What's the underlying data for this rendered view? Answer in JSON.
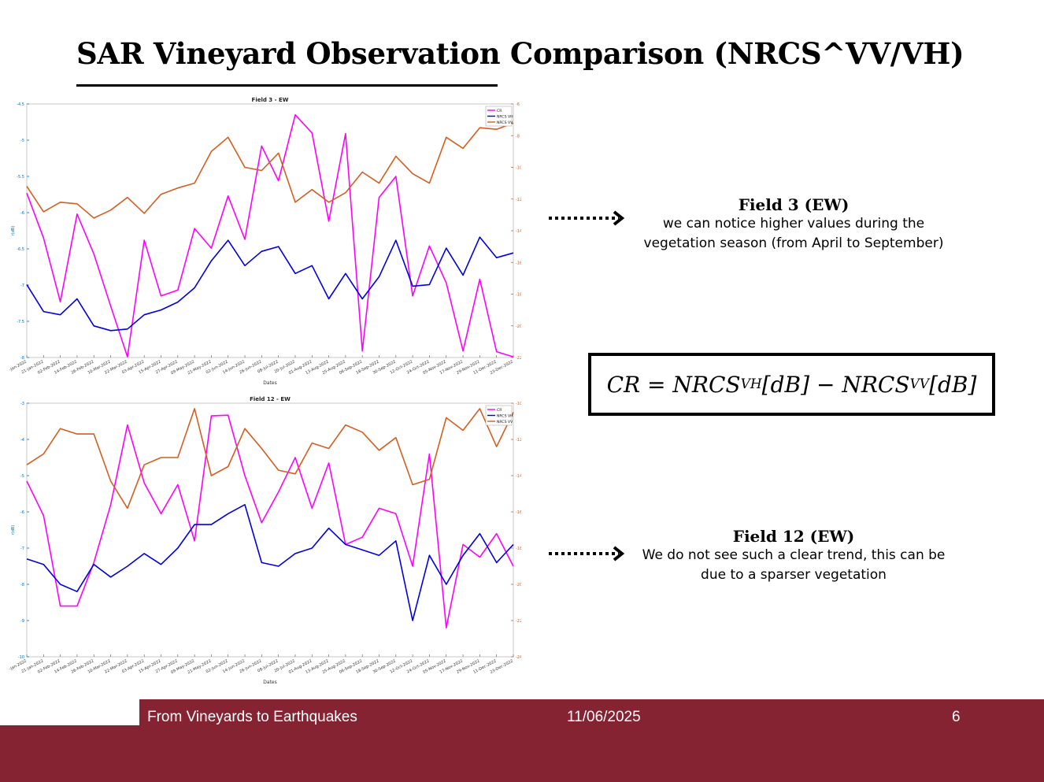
{
  "slide": {
    "title": "SAR Vineyard Observation Comparison (NRCS^VV/VH)",
    "footer_left": "From Vineyards to Earthquakes",
    "footer_date": "11/06/2025",
    "footer_page": "6"
  },
  "notes": [
    {
      "head": "Field 3 (EW)",
      "body1": "we can notice higher values during the",
      "body2": "vegetation season (from April to September)"
    },
    {
      "head": "Field 12 (EW)",
      "body1": "We do not see such a clear trend, this can be",
      "body2": "due to a sparser vegetation"
    }
  ],
  "formula": {
    "lhs": "CR",
    "eq": "=",
    "t1": "NRCS",
    "s1": "VH",
    "u1": "[dB]",
    "minus": "−",
    "t2": "NRCS",
    "s2": "VV",
    "u2": "[dB]"
  },
  "colors": {
    "CR": "#ff00ff",
    "VH": "#0000e0",
    "VV": "#d35f20",
    "footer": "#862333",
    "left_axis": "#0072bd"
  },
  "chart_data": [
    {
      "type": "line",
      "title": "Field 3 - EW",
      "xlabel": "Dates",
      "ylabel_left": "r(dB)",
      "ylabel_right": "n(d)",
      "ylim_left": [
        -8,
        -4.5
      ],
      "ylim_right": [
        -22,
        -6
      ],
      "yticks_left": [
        "-4.5",
        "-5",
        "-5.5",
        "-6",
        "-6.5",
        "-7",
        "-7.5",
        "-8"
      ],
      "yticks_right": [
        "-6",
        "-8",
        "-10",
        "-12",
        "-14",
        "-16",
        "-18",
        "-20",
        "-22"
      ],
      "x": [
        "09-Jan-2022",
        "21-Jan-2022",
        "02-Feb-2022",
        "14-Feb-2022",
        "26-Feb-2022",
        "10-Mar-2022",
        "22-Mar-2022",
        "03-Apr-2022",
        "15-Apr-2022",
        "27-Apr-2022",
        "09-May-2022",
        "21-May-2022",
        "02-Jun-2022",
        "14-Jun-2022",
        "26-Jun-2022",
        "08-Jul-2022",
        "20-Jul-2022",
        "01-Aug-2022",
        "13-Aug-2022",
        "25-Aug-2022",
        "06-Sep-2022",
        "18-Sep-2022",
        "30-Sep-2022",
        "12-Oct-2022",
        "24-Oct-2022",
        "05-Nov-2022",
        "17-Nov-2022",
        "29-Nov-2022",
        "11-Dec-2022",
        "23-Dec-2022"
      ],
      "legend": [
        "CR",
        "NRCS VH",
        "NRCS VV"
      ],
      "series": [
        {
          "name": "CR",
          "axis": "left",
          "values": [
            -5.73,
            -6.35,
            -7.23,
            -6.02,
            -6.57,
            -7.29,
            -7.99,
            -6.38,
            -7.15,
            -7.07,
            -6.22,
            -6.49,
            -5.77,
            -6.37,
            -5.08,
            -5.56,
            -4.65,
            -4.9,
            -6.12,
            -4.91,
            -7.91,
            -5.79,
            -5.5,
            -7.15,
            -6.46,
            -6.97,
            -7.91,
            -6.92,
            -7.92,
            -7.99
          ]
        },
        {
          "name": "NRCS VH",
          "axis": "right",
          "values": [
            -17.4,
            -19.1,
            -19.3,
            -18.3,
            -20.0,
            -20.3,
            -20.2,
            -19.3,
            -19.0,
            -18.5,
            -17.6,
            -15.9,
            -14.6,
            -16.2,
            -15.3,
            -15.0,
            -16.7,
            -16.2,
            -18.3,
            -16.7,
            -18.3,
            -16.9,
            -14.6,
            -17.5,
            -17.4,
            -15.1,
            -16.8,
            -14.4,
            -15.7,
            -15.4
          ]
        },
        {
          "name": "NRCS VV",
          "axis": "right",
          "values": [
            -11.2,
            -12.8,
            -12.2,
            -12.3,
            -13.2,
            -12.7,
            -11.9,
            -12.9,
            -11.7,
            -11.3,
            -11.0,
            -9.0,
            -8.1,
            -10.0,
            -10.2,
            -9.1,
            -12.2,
            -11.4,
            -12.2,
            -11.6,
            -10.3,
            -11.0,
            -9.3,
            -10.4,
            -11.0,
            -8.1,
            -8.8,
            -7.5,
            -7.6,
            -7.2
          ]
        }
      ]
    },
    {
      "type": "line",
      "title": "Field 12 - EW",
      "xlabel": "Dates",
      "ylabel_left": "r(dB)",
      "ylabel_right": "n(d)",
      "ylim_left": [
        -10,
        -3
      ],
      "ylim_right": [
        -24,
        -10
      ],
      "yticks_left": [
        "-3",
        "-4",
        "-5",
        "-6",
        "-7",
        "-8",
        "-9",
        "-10"
      ],
      "yticks_right": [
        "-10",
        "-12",
        "-14",
        "-16",
        "-18",
        "-20",
        "-22",
        "-24"
      ],
      "x": [
        "09-Jan-2022",
        "21-Jan-2022",
        "02-Feb-2022",
        "14-Feb-2022",
        "26-Feb-2022",
        "10-Mar-2022",
        "22-Mar-2022",
        "03-Apr-2022",
        "15-Apr-2022",
        "27-Apr-2022",
        "09-May-2022",
        "21-May-2022",
        "02-Jun-2022",
        "14-Jun-2022",
        "26-Jun-2022",
        "08-Jul-2022",
        "20-Jul-2022",
        "01-Aug-2022",
        "13-Aug-2022",
        "25-Aug-2022",
        "06-Sep-2022",
        "18-Sep-2022",
        "30-Sep-2022",
        "12-Oct-2022",
        "24-Oct-2022",
        "05-Nov-2022",
        "17-Nov-2022",
        "29-Nov-2022",
        "11-Dec-2022",
        "23-Dec-2022"
      ],
      "legend": [
        "CR",
        "NRCS VH",
        "NRCS VV"
      ],
      "series": [
        {
          "name": "CR",
          "axis": "left",
          "values": [
            -5.15,
            -6.1,
            -8.6,
            -8.6,
            -7.4,
            -5.8,
            -3.6,
            -5.2,
            -6.05,
            -5.25,
            -6.8,
            -3.35,
            -3.33,
            -5.0,
            -6.3,
            -5.45,
            -4.5,
            -5.9,
            -4.65,
            -6.9,
            -6.7,
            -5.9,
            -6.05,
            -7.5,
            -4.4,
            -9.2,
            -6.9,
            -7.25,
            -6.6,
            -7.5
          ]
        },
        {
          "name": "NRCS VH",
          "axis": "right",
          "values": [
            -18.6,
            -18.9,
            -20.0,
            -20.4,
            -18.9,
            -19.6,
            -19.0,
            -18.3,
            -18.9,
            -18.0,
            -16.7,
            -16.7,
            -16.1,
            -15.6,
            -18.8,
            -19.0,
            -18.3,
            -18.0,
            -16.9,
            -17.8,
            -18.1,
            -18.4,
            -17.6,
            -22.0,
            -18.4,
            -20.0,
            -18.4,
            -17.2,
            -18.8,
            -17.8
          ]
        },
        {
          "name": "NRCS VV",
          "axis": "right",
          "values": [
            -13.4,
            -12.8,
            -11.4,
            -11.7,
            -11.7,
            -14.3,
            -15.8,
            -13.4,
            -13.0,
            -13.0,
            -10.3,
            -14.0,
            -13.5,
            -11.4,
            -12.5,
            -13.7,
            -13.9,
            -12.2,
            -12.5,
            -11.2,
            -11.6,
            -12.6,
            -11.9,
            -14.5,
            -14.2,
            -10.8,
            -11.5,
            -10.3,
            -12.4,
            -10.5
          ]
        }
      ]
    }
  ]
}
